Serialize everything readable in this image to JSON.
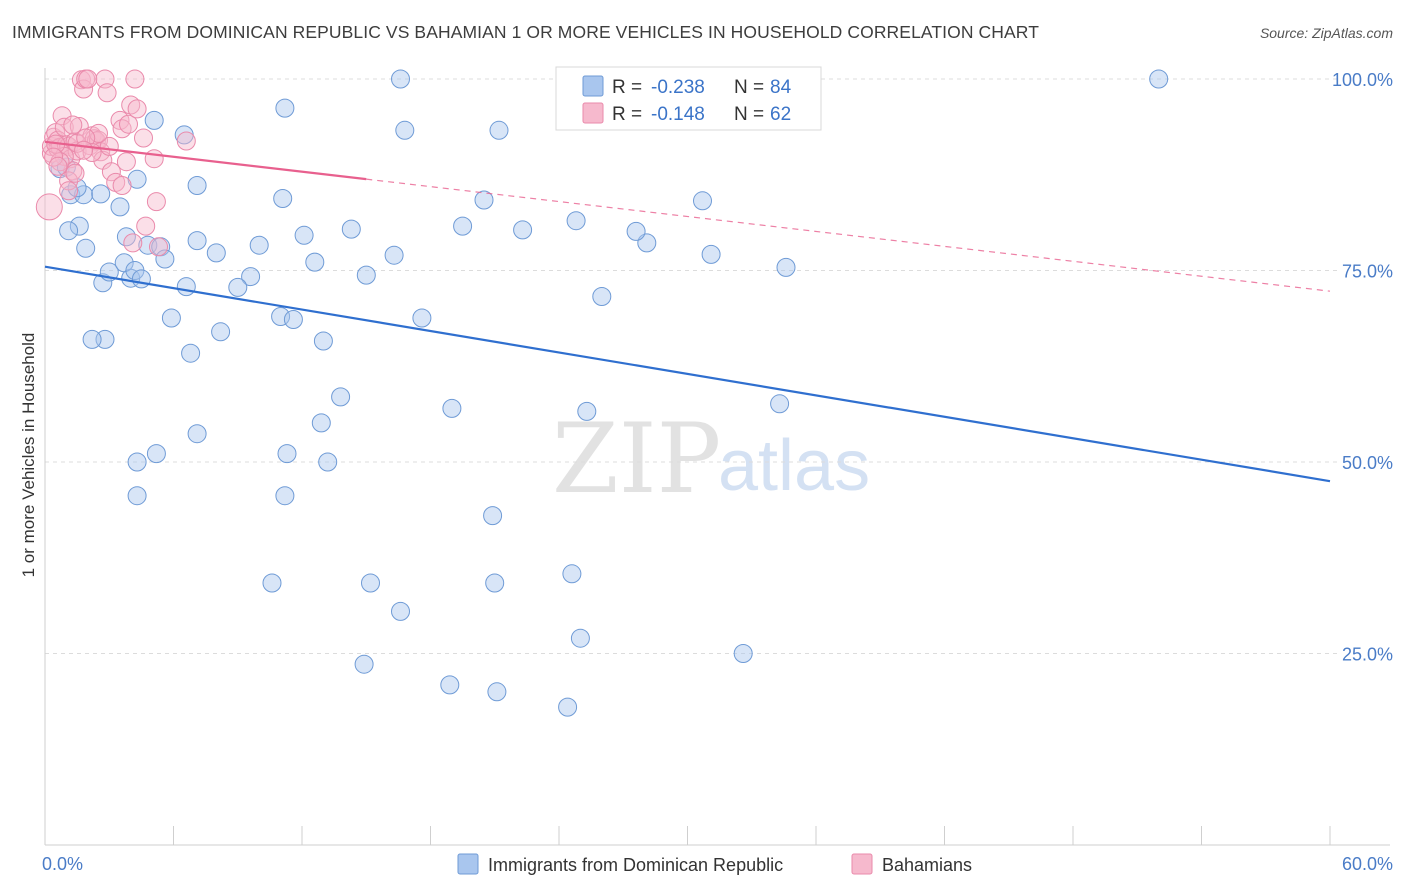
{
  "header": {
    "title": "IMMIGRANTS FROM DOMINICAN REPUBLIC VS BAHAMIAN 1 OR MORE VEHICLES IN HOUSEHOLD CORRELATION CHART",
    "source": "Source: ZipAtlas.com"
  },
  "watermark": {
    "zip": "ZIP",
    "atlas": "atlas"
  },
  "colors": {
    "blue_fill": "#a9c6ee",
    "blue_stroke": "#6f9bd6",
    "blue_line": "#2f6fcf",
    "pink_fill": "#f6b9cd",
    "pink_stroke": "#ea8aab",
    "pink_line": "#e8608e",
    "grid": "#dcdcdc",
    "tick_text": "#4a7cc7"
  },
  "stats_legend": {
    "blue": {
      "r_label": "R =",
      "r_value": "-0.238",
      "n_label": "N =",
      "n_value": "84"
    },
    "pink": {
      "r_label": "R =",
      "r_value": "-0.148",
      "n_label": "N =",
      "n_value": "62"
    }
  },
  "chart_data": {
    "type": "scatter",
    "title": "IMMIGRANTS FROM DOMINICAN REPUBLIC VS BAHAMIAN 1 OR MORE VEHICLES IN HOUSEHOLD CORRELATION CHART",
    "xlabel": "",
    "ylabel": "1 or more Vehicles in Household",
    "xlim": [
      0,
      60
    ],
    "ylim": [
      0,
      100
    ],
    "x_tick_labels": [
      "0.0%",
      "60.0%"
    ],
    "y_ticks": [
      25,
      50,
      75,
      100
    ],
    "y_tick_labels": [
      "25.0%",
      "50.0%",
      "75.0%",
      "100.0%"
    ],
    "grid": true,
    "series": [
      {
        "name": "Immigrants from Dominican Republic",
        "color": "blue",
        "r": -0.238,
        "n": 84,
        "trend": {
          "x_start": 0,
          "y_start": 75.5,
          "x_end": 60,
          "y_end": 47.5,
          "dashed_from_x": null
        },
        "points": [
          [
            0.7,
            88.3
          ],
          [
            1.0,
            88.5
          ],
          [
            1.2,
            84.9
          ],
          [
            1.8,
            84.9
          ],
          [
            1.5,
            85.8
          ],
          [
            2.6,
            85.0
          ],
          [
            1.6,
            80.8
          ],
          [
            1.1,
            80.2
          ],
          [
            1.9,
            77.9
          ],
          [
            2.7,
            73.4
          ],
          [
            3.0,
            74.8
          ],
          [
            4.0,
            74.0
          ],
          [
            2.8,
            66.0
          ],
          [
            2.2,
            66.0
          ],
          [
            3.5,
            83.3
          ],
          [
            3.8,
            79.4
          ],
          [
            3.7,
            76.0
          ],
          [
            4.2,
            75.0
          ],
          [
            4.3,
            86.9
          ],
          [
            5.1,
            94.6
          ],
          [
            4.8,
            78.3
          ],
          [
            5.4,
            78.1
          ],
          [
            7.1,
            86.1
          ],
          [
            6.5,
            92.7
          ],
          [
            4.5,
            73.9
          ],
          [
            5.6,
            76.5
          ],
          [
            7.1,
            78.9
          ],
          [
            6.6,
            72.9
          ],
          [
            5.9,
            68.8
          ],
          [
            8.0,
            77.3
          ],
          [
            10.0,
            78.3
          ],
          [
            11.0,
            69.0
          ],
          [
            9.6,
            74.2
          ],
          [
            9.0,
            72.8
          ],
          [
            8.2,
            67.0
          ],
          [
            11.6,
            68.6
          ],
          [
            11.1,
            84.4
          ],
          [
            12.6,
            76.1
          ],
          [
            13.0,
            65.8
          ],
          [
            12.1,
            79.6
          ],
          [
            16.3,
            77.0
          ],
          [
            14.3,
            80.4
          ],
          [
            15.0,
            74.4
          ],
          [
            17.6,
            68.8
          ],
          [
            11.2,
            96.2
          ],
          [
            16.8,
            93.3
          ],
          [
            19.5,
            80.8
          ],
          [
            21.2,
            93.3
          ],
          [
            16.6,
            100.0
          ],
          [
            20.5,
            84.2
          ],
          [
            22.3,
            80.3
          ],
          [
            24.8,
            81.5
          ],
          [
            28.1,
            78.6
          ],
          [
            26.0,
            71.6
          ],
          [
            27.6,
            80.1
          ],
          [
            30.7,
            84.1
          ],
          [
            31.1,
            77.1
          ],
          [
            34.6,
            75.4
          ],
          [
            52.0,
            100.0
          ],
          [
            34.3,
            57.6
          ],
          [
            19.0,
            57.0
          ],
          [
            25.3,
            56.6
          ],
          [
            13.8,
            58.5
          ],
          [
            6.8,
            64.2
          ],
          [
            12.9,
            55.1
          ],
          [
            7.1,
            53.7
          ],
          [
            11.3,
            51.1
          ],
          [
            5.2,
            51.1
          ],
          [
            13.2,
            50.0
          ],
          [
            4.3,
            50.0
          ],
          [
            11.2,
            45.6
          ],
          [
            4.3,
            45.6
          ],
          [
            20.9,
            43.0
          ],
          [
            10.6,
            34.2
          ],
          [
            15.2,
            34.2
          ],
          [
            21.0,
            34.2
          ],
          [
            24.6,
            35.4
          ],
          [
            16.6,
            30.5
          ],
          [
            25.0,
            27.0
          ],
          [
            32.6,
            25.0
          ],
          [
            14.9,
            23.6
          ],
          [
            18.9,
            20.9
          ],
          [
            21.1,
            20.0
          ],
          [
            24.4,
            18.0
          ]
        ]
      },
      {
        "name": "Bahamians",
        "color": "pink",
        "r": -0.148,
        "n": 62,
        "trend": {
          "x_start": 0,
          "y_start": 91.8,
          "x_end": 60,
          "y_end": 72.3,
          "dashed_from_x": 15.0
        },
        "points": [
          [
            0.2,
            83.3
          ],
          [
            0.3,
            90.3
          ],
          [
            0.3,
            91.2
          ],
          [
            0.4,
            92.4
          ],
          [
            0.5,
            93.0
          ],
          [
            0.6,
            92.0
          ],
          [
            0.6,
            90.9
          ],
          [
            0.7,
            91.1
          ],
          [
            0.8,
            95.2
          ],
          [
            0.9,
            93.7
          ],
          [
            1.0,
            91.4
          ],
          [
            1.1,
            91.2
          ],
          [
            1.2,
            89.6
          ],
          [
            1.3,
            88.0
          ],
          [
            1.1,
            86.7
          ],
          [
            1.4,
            87.7
          ],
          [
            1.4,
            91.8
          ],
          [
            1.5,
            90.6
          ],
          [
            1.6,
            93.8
          ],
          [
            1.7,
            99.9
          ],
          [
            1.8,
            98.7
          ],
          [
            1.9,
            100.0
          ],
          [
            2.0,
            100.0
          ],
          [
            2.1,
            91.3
          ],
          [
            2.2,
            92.6
          ],
          [
            2.3,
            92.2
          ],
          [
            2.4,
            91.9
          ],
          [
            2.5,
            92.0
          ],
          [
            2.6,
            90.5
          ],
          [
            2.7,
            89.4
          ],
          [
            2.8,
            100.0
          ],
          [
            2.9,
            98.2
          ],
          [
            3.0,
            91.2
          ],
          [
            3.1,
            87.9
          ],
          [
            3.3,
            86.5
          ],
          [
            3.5,
            94.6
          ],
          [
            3.6,
            93.5
          ],
          [
            3.8,
            89.2
          ],
          [
            3.9,
            94.1
          ],
          [
            4.0,
            96.6
          ],
          [
            4.2,
            100.0
          ],
          [
            4.3,
            96.1
          ],
          [
            4.6,
            92.3
          ],
          [
            4.7,
            80.8
          ],
          [
            5.1,
            89.6
          ],
          [
            5.2,
            84.0
          ],
          [
            5.3,
            78.1
          ],
          [
            4.1,
            78.6
          ],
          [
            6.6,
            91.9
          ],
          [
            1.1,
            85.4
          ],
          [
            0.9,
            89.9
          ],
          [
            0.7,
            89.2
          ],
          [
            1.5,
            91.6
          ],
          [
            2.5,
            92.9
          ],
          [
            1.9,
            92.3
          ],
          [
            0.5,
            91.5
          ],
          [
            0.4,
            89.8
          ],
          [
            1.3,
            94.0
          ],
          [
            2.2,
            90.4
          ],
          [
            3.6,
            86.1
          ],
          [
            0.6,
            88.6
          ],
          [
            1.8,
            90.7
          ]
        ]
      }
    ]
  },
  "bottom_legend": {
    "blue_label": "Immigrants from Dominican Republic",
    "pink_label": "Bahamians"
  }
}
